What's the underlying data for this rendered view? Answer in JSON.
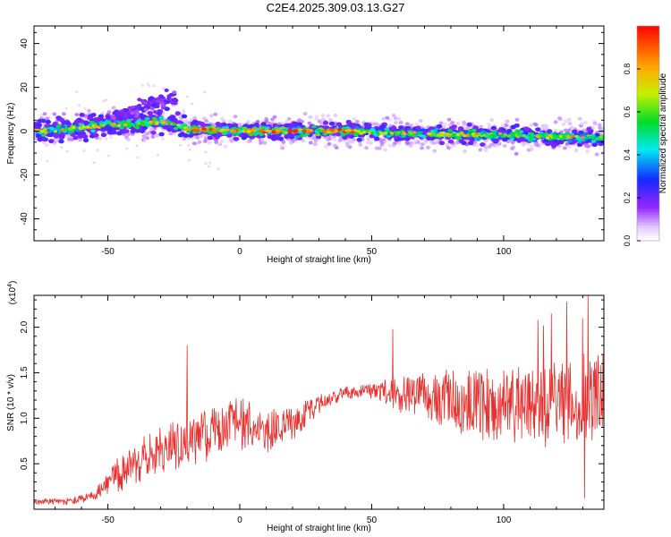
{
  "page_title": "C2E4.2025.309.03.13.G27",
  "chart_data": [
    {
      "type": "heatmap",
      "title": "C2E4.2025.309.03.13.G27",
      "xlabel": "Height of straight line (km)",
      "ylabel": "Frequency (Hz)",
      "xlim": [
        -78,
        138
      ],
      "ylim": [
        -50,
        48
      ],
      "xticks": [
        -50,
        0,
        50,
        100
      ],
      "yticks": [
        -40,
        -20,
        0,
        20,
        40
      ],
      "ridge": [
        {
          "x": -78,
          "f": 0
        },
        {
          "x": -70,
          "f": 0.5
        },
        {
          "x": -60,
          "f": 1.5
        },
        {
          "x": -50,
          "f": 3
        },
        {
          "x": -42,
          "f": 3
        },
        {
          "x": -35,
          "f": 4
        },
        {
          "x": -27,
          "f": 4
        },
        {
          "x": -20,
          "f": 1
        },
        {
          "x": 0,
          "f": 0
        },
        {
          "x": 20,
          "f": 0
        },
        {
          "x": 40,
          "f": 0
        },
        {
          "x": 60,
          "f": -1
        },
        {
          "x": 80,
          "f": -1.5
        },
        {
          "x": 100,
          "f": -2
        },
        {
          "x": 120,
          "f": -2.5
        },
        {
          "x": 138,
          "f": -3
        }
      ],
      "branch": [
        {
          "x": -50,
          "f": 5
        },
        {
          "x": -40,
          "f": 9
        },
        {
          "x": -30,
          "f": 14
        },
        {
          "x": -26,
          "f": 15
        }
      ],
      "peak_band": [
        -20,
        45
      ],
      "colorbar": {
        "label": "Normalized spectral amplitude",
        "range": [
          0,
          1
        ],
        "ticks": [
          "0.0",
          "0.2",
          "0.4",
          "0.6",
          "0.8"
        ],
        "tick_values": [
          0,
          0.2,
          0.4,
          0.6,
          0.8
        ]
      }
    },
    {
      "type": "line",
      "xlabel": "Height of straight line (km)",
      "ylabel": "SNR (10 * v/v)",
      "exponent_label": "(x10",
      "exponent_power": "4",
      "exponent_close": ")",
      "xlim": [
        -78,
        138
      ],
      "ylim": [
        0,
        23500
      ],
      "xticks": [
        -50,
        0,
        50,
        100
      ],
      "yticks": [
        5000,
        10000,
        15000,
        20000
      ],
      "ytick_labels": [
        "0.5",
        "1.0",
        "1.5",
        "2.0"
      ],
      "color": "#e8302e",
      "envelope": [
        {
          "x": -78,
          "v": 800
        },
        {
          "x": -65,
          "v": 900
        },
        {
          "x": -55,
          "v": 1500
        },
        {
          "x": -50,
          "v": 3000
        },
        {
          "x": -40,
          "v": 5000
        },
        {
          "x": -30,
          "v": 6500
        },
        {
          "x": -20,
          "v": 7500
        },
        {
          "x": -10,
          "v": 8500
        },
        {
          "x": 0,
          "v": 9500
        },
        {
          "x": 10,
          "v": 8500
        },
        {
          "x": 20,
          "v": 9500
        },
        {
          "x": 30,
          "v": 11500
        },
        {
          "x": 40,
          "v": 12800
        },
        {
          "x": 50,
          "v": 13000
        },
        {
          "x": 55,
          "v": 12800
        },
        {
          "x": 70,
          "v": 12500
        },
        {
          "x": 90,
          "v": 11500
        },
        {
          "x": 110,
          "v": 11500
        },
        {
          "x": 130,
          "v": 12000
        },
        {
          "x": 138,
          "v": 12500
        }
      ],
      "spread": [
        {
          "x": -78,
          "v": 300
        },
        {
          "x": -55,
          "v": 600
        },
        {
          "x": -45,
          "v": 2200
        },
        {
          "x": -20,
          "v": 3000
        },
        {
          "x": 0,
          "v": 3000
        },
        {
          "x": 20,
          "v": 2000
        },
        {
          "x": 35,
          "v": 700
        },
        {
          "x": 50,
          "v": 900
        },
        {
          "x": 58,
          "v": 2200
        },
        {
          "x": 80,
          "v": 3500
        },
        {
          "x": 100,
          "v": 4200
        },
        {
          "x": 120,
          "v": 5000
        },
        {
          "x": 138,
          "v": 5200
        }
      ],
      "spikes": [
        {
          "x": -20,
          "v": 18000
        },
        {
          "x": 58,
          "v": 19800
        },
        {
          "x": 113,
          "v": 20800
        },
        {
          "x": 115,
          "v": 20200
        },
        {
          "x": 118,
          "v": 21500
        },
        {
          "x": 124,
          "v": 22800
        },
        {
          "x": 130,
          "v": 21000
        },
        {
          "x": 132,
          "v": 23500
        },
        {
          "x": 130.7,
          "v": 1200
        }
      ]
    }
  ]
}
